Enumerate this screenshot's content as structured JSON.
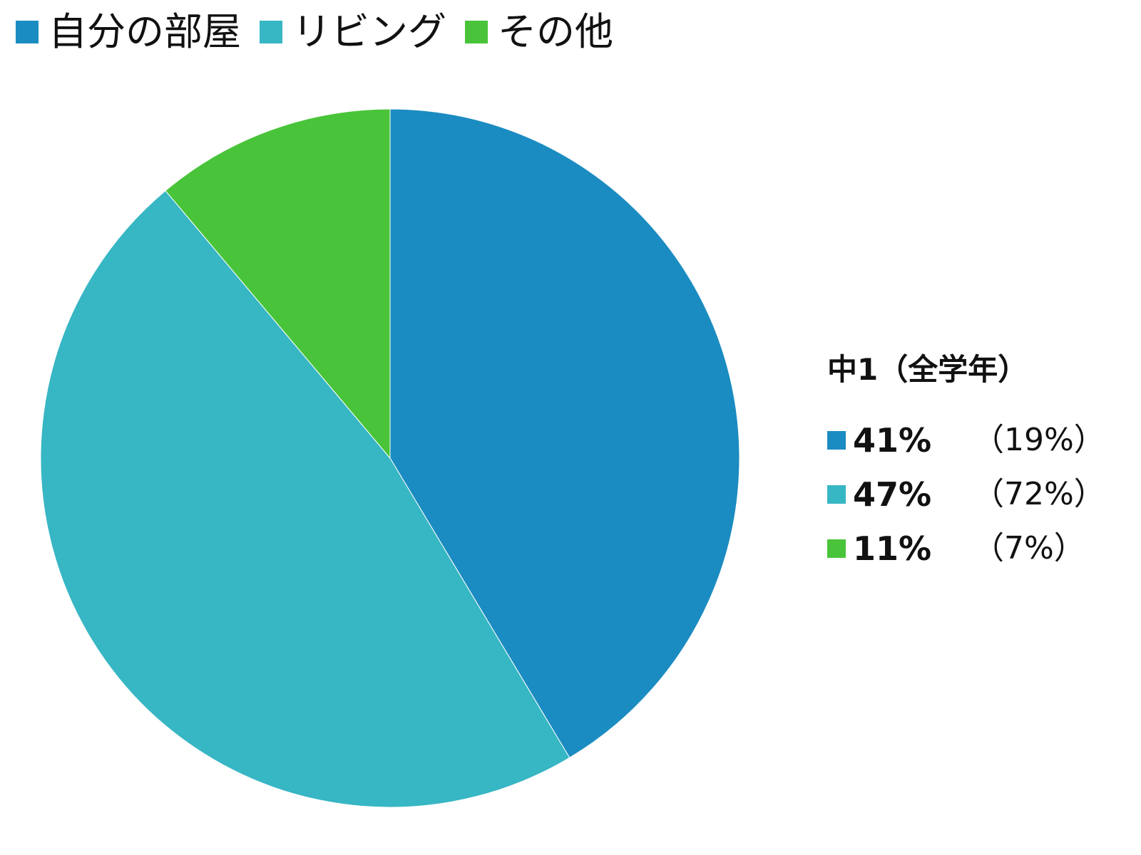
{
  "chart_data": {
    "type": "pie",
    "series": [
      {
        "name": "自分の部屋",
        "value": 41,
        "color": "#1b8cc1"
      },
      {
        "name": "リビング",
        "value": 47,
        "color": "#37b6c4"
      },
      {
        "name": "その他",
        "value": 11,
        "color": "#49c43a"
      }
    ],
    "legend_position": "top-left"
  },
  "summary": {
    "title": "中1（全学年）",
    "rows": [
      {
        "main": "41%",
        "compare": "（19%）",
        "color": "#1b8cc1"
      },
      {
        "main": "47%",
        "compare": "（72%）",
        "color": "#37b6c4"
      },
      {
        "main": "11%",
        "compare": "（7%）",
        "color": "#49c43a"
      }
    ]
  }
}
